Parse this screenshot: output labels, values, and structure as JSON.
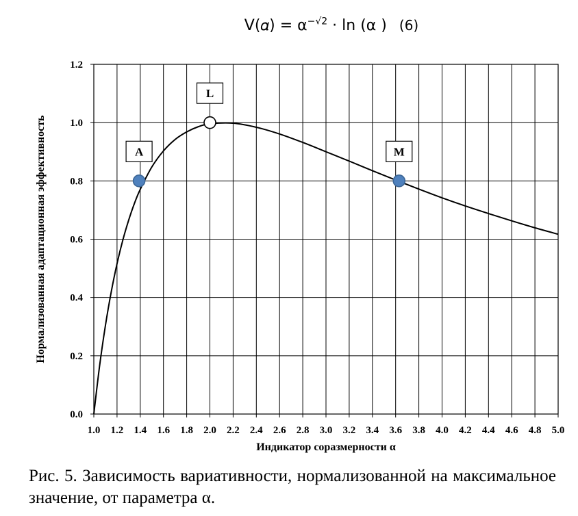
{
  "formula": {
    "lhs": "V(𝛼) = α",
    "exponent": "−√2",
    "rhs": " · ln (α )",
    "number": "(6)"
  },
  "chart_data": {
    "type": "line",
    "title": "",
    "xlabel": "Индикатор соразмерности α",
    "ylabel": "Нормализованная адаптационная эффективность",
    "xlim": [
      1.0,
      5.0
    ],
    "ylim": [
      0.0,
      1.2
    ],
    "x_ticks": [
      "1.0",
      "1.2",
      "1.4",
      "1.6",
      "1.8",
      "2.0",
      "2.2",
      "2.4",
      "2.6",
      "2.8",
      "3.0",
      "3.2",
      "3.4",
      "3.6",
      "3.8",
      "4.0",
      "4.2",
      "4.4",
      "4.6",
      "4.8",
      "5.0"
    ],
    "y_ticks": [
      "0.0",
      "0.2",
      "0.4",
      "0.6",
      "0.8",
      "1.0",
      "1.2"
    ],
    "grid": true,
    "series": [
      {
        "x": [
          1.0,
          1.05,
          1.1,
          1.15,
          1.2,
          1.25,
          1.3,
          1.35,
          1.4,
          1.5,
          1.6,
          1.7,
          1.8,
          1.9,
          2.0,
          2.2,
          2.4,
          2.6,
          2.8,
          3.0,
          3.2,
          3.4,
          3.6,
          3.8,
          4.0,
          4.2,
          4.4,
          4.6,
          4.8,
          5.0
        ],
        "y": [
          0.0,
          0.166,
          0.304,
          0.419,
          0.516,
          0.597,
          0.665,
          0.723,
          0.771,
          0.848,
          0.903,
          0.942,
          0.968,
          0.986,
          0.996,
          0.998,
          0.984,
          0.961,
          0.932,
          0.9,
          0.868,
          0.835,
          0.803,
          0.772,
          0.742,
          0.714,
          0.688,
          0.663,
          0.639,
          0.617
        ],
        "color": "#000000"
      }
    ],
    "points": [
      {
        "label": "A",
        "x": 1.39,
        "y": 0.8,
        "fill": "#4f81bd"
      },
      {
        "label": "L",
        "x": 2.0,
        "y": 1.0,
        "fill": "#ffffff"
      },
      {
        "label": "M",
        "x": 3.63,
        "y": 0.8,
        "fill": "#4f81bd"
      }
    ]
  },
  "caption": "Рис. 5. Зависимость вариативности, нормализованной на максимальное значение, от параметра α."
}
